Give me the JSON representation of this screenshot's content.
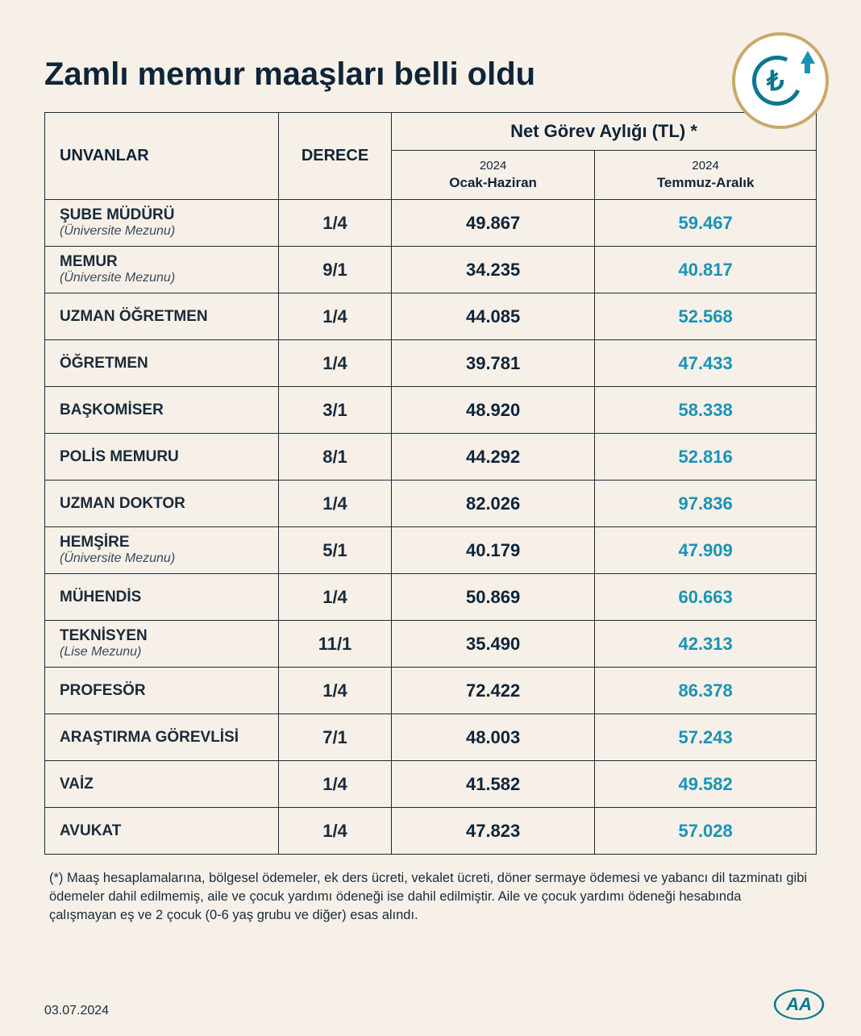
{
  "title": "Zamlı memur maaşları belli oldu",
  "colors": {
    "background": "#f6f0e8",
    "text_primary": "#0f2438",
    "border": "#1a2b3a",
    "accent_gold": "#c9a96a",
    "accent_teal": "#0c768e",
    "highlight_blue": "#1993b5"
  },
  "icon": {
    "symbol": "₺",
    "type": "currency-refresh-up"
  },
  "table": {
    "headers": {
      "unvanlar": "UNVANLAR",
      "derece": "DERECE",
      "net_gorev": "Net Görev Aylığı (TL) *",
      "period1_year": "2024",
      "period1_label": "Ocak-Haziran",
      "period2_year": "2024",
      "period2_label": "Temmuz-Aralık"
    },
    "rows": [
      {
        "title": "ŞUBE MÜDÜRÜ",
        "subtitle": "(Üniversite Mezunu)",
        "derece": "1/4",
        "p1": "49.867",
        "p2": "59.467"
      },
      {
        "title": "MEMUR",
        "subtitle": "(Üniversite Mezunu)",
        "derece": "9/1",
        "p1": "34.235",
        "p2": "40.817"
      },
      {
        "title": "UZMAN ÖĞRETMEN",
        "subtitle": "",
        "derece": "1/4",
        "p1": "44.085",
        "p2": "52.568"
      },
      {
        "title": "ÖĞRETMEN",
        "subtitle": "",
        "derece": "1/4",
        "p1": "39.781",
        "p2": "47.433"
      },
      {
        "title": "BAŞKOMİSER",
        "subtitle": "",
        "derece": "3/1",
        "p1": "48.920",
        "p2": "58.338"
      },
      {
        "title": "POLİS MEMURU",
        "subtitle": "",
        "derece": "8/1",
        "p1": "44.292",
        "p2": "52.816"
      },
      {
        "title": "UZMAN DOKTOR",
        "subtitle": "",
        "derece": "1/4",
        "p1": "82.026",
        "p2": "97.836"
      },
      {
        "title": "HEMŞİRE",
        "subtitle": "(Üniversite Mezunu)",
        "derece": "5/1",
        "p1": "40.179",
        "p2": "47.909"
      },
      {
        "title": "MÜHENDİS",
        "subtitle": "",
        "derece": "1/4",
        "p1": "50.869",
        "p2": "60.663"
      },
      {
        "title": "TEKNİSYEN",
        "subtitle": "(Lise Mezunu)",
        "derece": "11/1",
        "p1": "35.490",
        "p2": "42.313"
      },
      {
        "title": "PROFESÖR",
        "subtitle": "",
        "derece": "1/4",
        "p1": "72.422",
        "p2": "86.378"
      },
      {
        "title": "ARAŞTIRMA GÖREVLİSİ",
        "subtitle": "",
        "derece": "7/1",
        "p1": "48.003",
        "p2": "57.243"
      },
      {
        "title": "VAİZ",
        "subtitle": "",
        "derece": "1/4",
        "p1": "41.582",
        "p2": "49.582"
      },
      {
        "title": "AVUKAT",
        "subtitle": "",
        "derece": "1/4",
        "p1": "47.823",
        "p2": "57.028"
      }
    ]
  },
  "footnote": "(*) Maaş hesaplamalarına, bölgesel ödemeler, ek ders ücreti, vekalet ücreti, döner sermaye ödemesi ve yabancı dil tazminatı gibi ödemeler dahil edilmemiş, aile ve çocuk yardımı ödeneği ise dahil edilmiştir. Aile ve çocuk yardımı ödeneği hesabında çalışmayan eş ve 2 çocuk (0-6 yaş grubu ve diğer) esas alındı.",
  "date": "03.07.2024",
  "source_logo": "AA"
}
